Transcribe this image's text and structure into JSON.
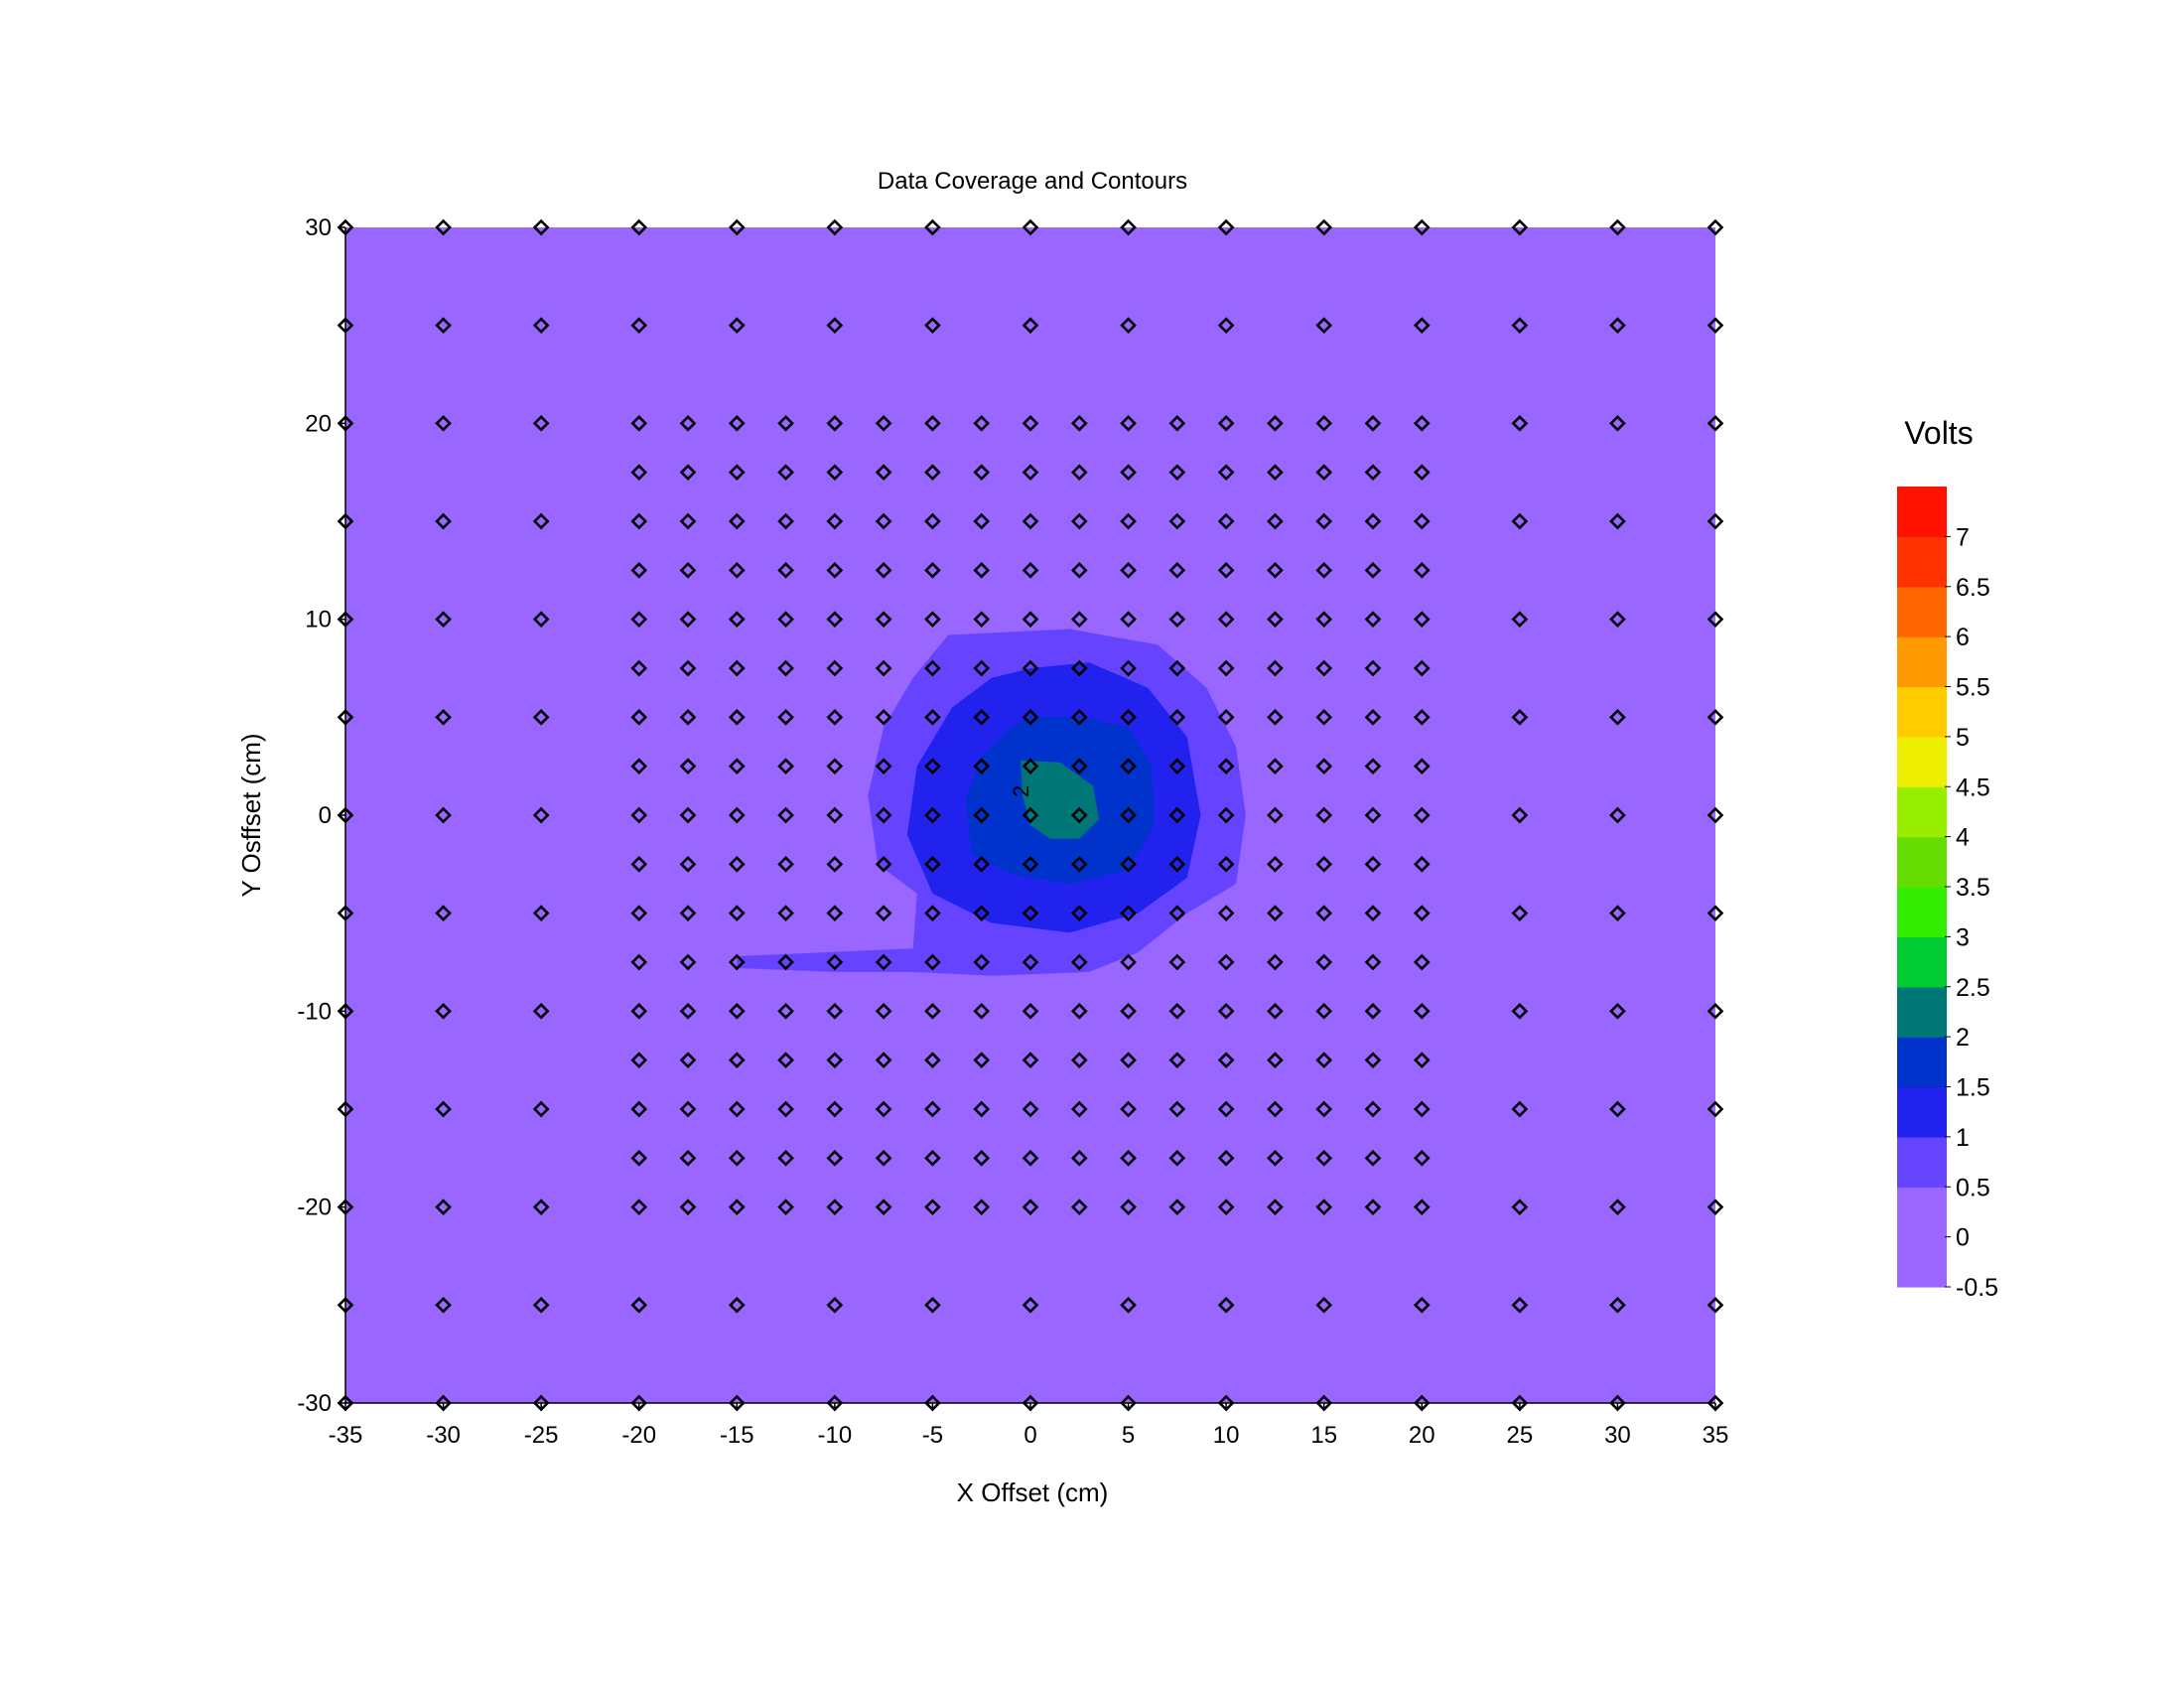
{
  "chart_data": {
    "type": "contour",
    "title": "Data Coverage and Contours",
    "xlabel": "X Offset (cm)",
    "ylabel": "Y Osffset (cm)",
    "xlim": [
      -35,
      35
    ],
    "ylim": [
      -30,
      30
    ],
    "x_ticks": [
      "-35",
      "-30",
      "-25",
      "-20",
      "-15",
      "-10",
      "-5",
      "0",
      "5",
      "10",
      "15",
      "20",
      "25",
      "30",
      "35"
    ],
    "y_ticks": [
      "30",
      "20",
      "10",
      "0",
      "-10",
      "-20",
      "-30"
    ],
    "contour_label": "2",
    "legend": {
      "title": "Volts",
      "labels": [
        "7",
        "6.5",
        "6",
        "5.5",
        "5",
        "4.5",
        "4",
        "3.5",
        "3",
        "2.5",
        "2",
        "1.5",
        "1",
        "0.5",
        "0",
        "-0.5"
      ],
      "levels": [
        -0.5,
        0,
        0.5,
        1,
        1.5,
        2,
        2.5,
        3,
        3.5,
        4,
        4.5,
        5,
        5.5,
        6,
        6.5,
        7,
        7.5
      ],
      "colors": [
        "#9966ff",
        "#9966ff",
        "#6644ff",
        "#2222ee",
        "#0033cc",
        "#007777",
        "#00cc33",
        "#33ee00",
        "#66dd00",
        "#99ee00",
        "#eeee00",
        "#ffcc00",
        "#ff9900",
        "#ff6600",
        "#ff3300",
        "#ff1100"
      ]
    },
    "regions": [
      {
        "level": "0.5 to 1",
        "color": "#6644ff",
        "outline": [
          [
            -4.2,
            9.2
          ],
          [
            2,
            9.5
          ],
          [
            6.5,
            8.7
          ],
          [
            9,
            6.5
          ],
          [
            10.5,
            3.5
          ],
          [
            11,
            0
          ],
          [
            10.5,
            -3.5
          ],
          [
            8,
            -5
          ],
          [
            5.5,
            -7
          ],
          [
            3,
            -8
          ],
          [
            -2,
            -8.2
          ],
          [
            -6,
            -8
          ],
          [
            -10,
            -8
          ],
          [
            -15,
            -7.8
          ],
          [
            -15,
            -7.2
          ],
          [
            -6,
            -6.8
          ],
          [
            -5.8,
            -4
          ],
          [
            -7.8,
            -2.5
          ],
          [
            -8.3,
            1
          ],
          [
            -7.5,
            4.5
          ],
          [
            -6,
            7
          ]
        ]
      },
      {
        "level": "1 to 1.5",
        "color": "#2222ee",
        "outline": [
          [
            0,
            7.5
          ],
          [
            3,
            7.8
          ],
          [
            6,
            6.5
          ],
          [
            8,
            4
          ],
          [
            8.7,
            0
          ],
          [
            8,
            -3.2
          ],
          [
            5.5,
            -5
          ],
          [
            2,
            -6
          ],
          [
            -2,
            -5.5
          ],
          [
            -5,
            -4
          ],
          [
            -6.3,
            -1
          ],
          [
            -5.8,
            2.5
          ],
          [
            -4,
            5.5
          ],
          [
            -2,
            7
          ]
        ]
      },
      {
        "level": "1.5 to 2",
        "color": "#0033cc",
        "outline": [
          [
            0,
            5
          ],
          [
            2.5,
            5
          ],
          [
            5,
            4.5
          ],
          [
            6.2,
            2.5
          ],
          [
            6.3,
            -0.5
          ],
          [
            5,
            -2.8
          ],
          [
            2,
            -3.5
          ],
          [
            -1,
            -3
          ],
          [
            -3,
            -2
          ],
          [
            -3.3,
            0.8
          ],
          [
            -2.5,
            3
          ],
          [
            -1,
            4.5
          ]
        ]
      },
      {
        "level": "2 to 2.5",
        "color": "#007777",
        "outline": [
          [
            -0.5,
            2.8
          ],
          [
            1.5,
            2.7
          ],
          [
            3.2,
            1.5
          ],
          [
            3.5,
            -0.2
          ],
          [
            2.5,
            -1.2
          ],
          [
            1,
            -1.2
          ],
          [
            0,
            -0.5
          ],
          [
            -0.4,
            1
          ]
        ]
      }
    ],
    "grid_x_outer": [
      -35,
      -30,
      -25,
      -20,
      -15,
      -10,
      -5,
      0,
      5,
      10,
      15,
      20,
      25,
      30,
      35
    ],
    "grid_y_outer": [
      30,
      25,
      -25,
      -30
    ],
    "grid_x_mid": [
      -35,
      -30,
      -25,
      25,
      30,
      35
    ],
    "grid_y_mid": [
      20,
      15,
      10,
      5,
      0,
      -5,
      -10,
      -15,
      -20
    ],
    "grid_x_inner_start": -20,
    "grid_x_inner_end": 20,
    "grid_x_inner_step": 2.5,
    "grid_y_inner_start": -20,
    "grid_y_inner_end": 20,
    "grid_y_inner_step": 2.5
  }
}
